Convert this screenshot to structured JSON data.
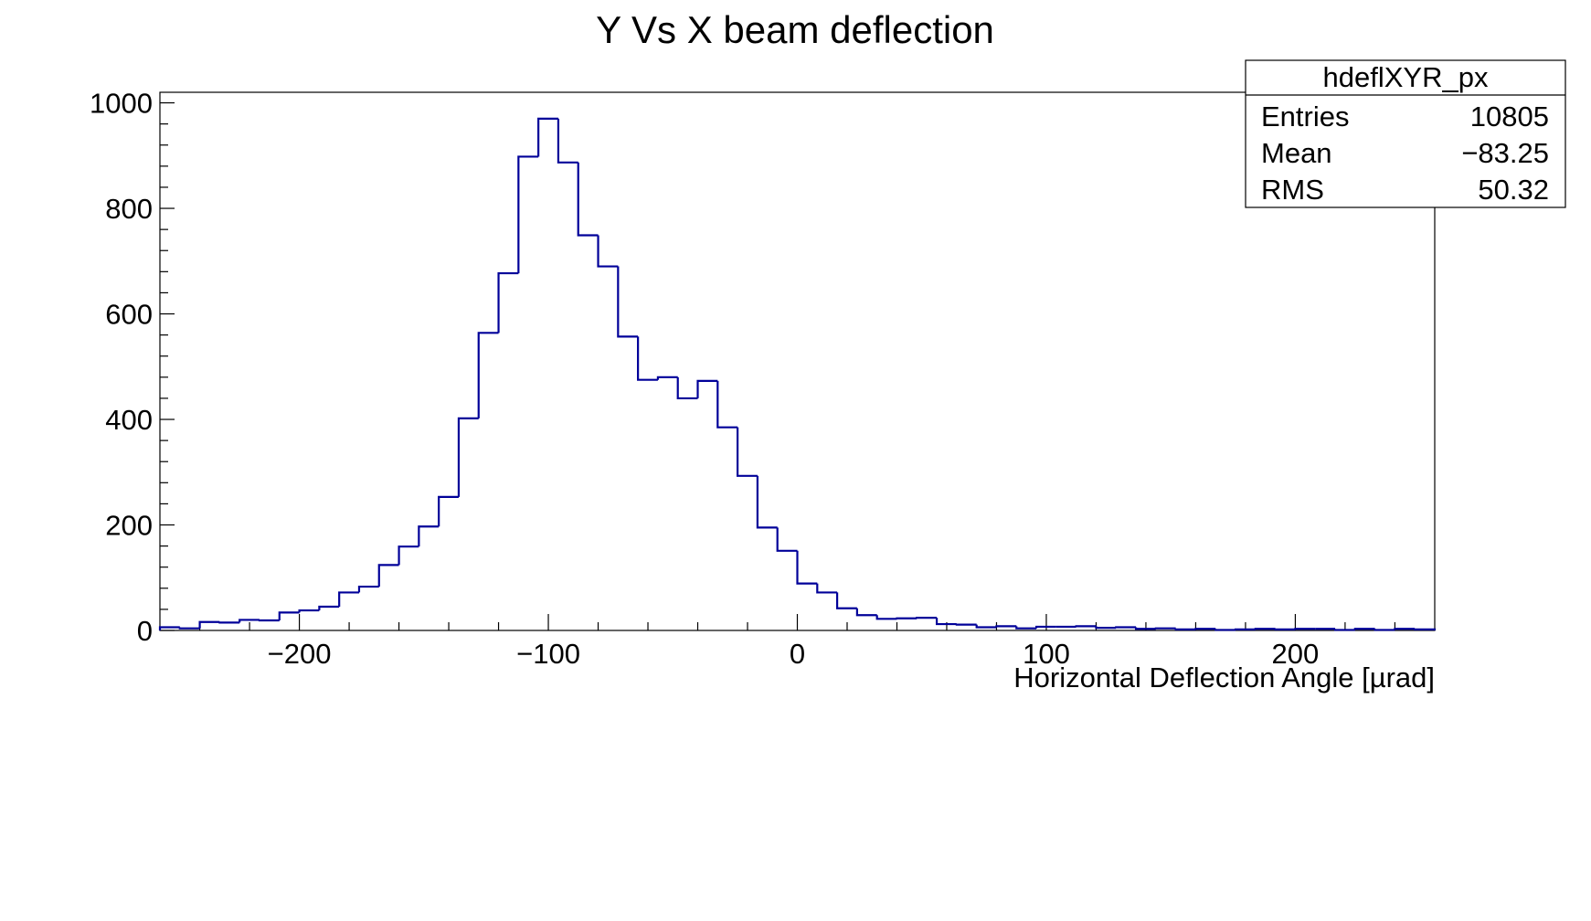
{
  "chart_data": {
    "type": "bar",
    "title": "Y Vs X beam deflection",
    "xlabel": "Horizontal Deflection Angle [µrad]",
    "ylabel": "",
    "xlim": [
      -256,
      256
    ],
    "ylim": [
      0,
      1020
    ],
    "x_ticks": [
      -200,
      -100,
      0,
      100,
      200
    ],
    "x_tick_labels": [
      "−200",
      "−100",
      "0",
      "100",
      "200"
    ],
    "y_ticks": [
      0,
      200,
      400,
      600,
      800,
      1000
    ],
    "y_tick_labels": [
      "0",
      "200",
      "400",
      "600",
      "800",
      "1000"
    ],
    "grid": false,
    "line_color": "#000099",
    "bin_edges": [
      -256,
      -248,
      -240,
      -232,
      -224,
      -216,
      -208,
      -200,
      -192,
      -184,
      -176,
      -168,
      -160,
      -152,
      -144,
      -136,
      -128,
      -120,
      -112,
      -104,
      -96,
      -88,
      -80,
      -72,
      -64,
      -56,
      -48,
      -40,
      -32,
      -24,
      -16,
      -8,
      0,
      8,
      16,
      24,
      32,
      40,
      48,
      56,
      64,
      72,
      80,
      88,
      96,
      104,
      112,
      120,
      128,
      136,
      144,
      152,
      160,
      168,
      176,
      184,
      192,
      200,
      208,
      216,
      224,
      232,
      240,
      248,
      256
    ],
    "values": [
      6,
      4,
      16,
      15,
      20,
      19,
      34,
      38,
      45,
      72,
      83,
      124,
      159,
      197,
      253,
      402,
      564,
      677,
      898,
      970,
      887,
      749,
      690,
      557,
      475,
      480,
      440,
      473,
      385,
      293,
      195,
      151,
      89,
      72,
      42,
      29,
      22,
      23,
      24,
      12,
      11,
      6,
      8,
      4,
      7,
      7,
      8,
      5,
      6,
      3,
      4,
      2,
      3,
      1,
      2,
      3,
      2,
      3,
      3,
      1,
      3,
      1,
      3,
      2
    ]
  },
  "stats_box": {
    "name": "hdeflXYR_px",
    "rows": [
      {
        "label": "Entries",
        "value": "10805"
      },
      {
        "label": "Mean",
        "value": "−83.25"
      },
      {
        "label": "RMS",
        "value": "50.32"
      }
    ]
  }
}
